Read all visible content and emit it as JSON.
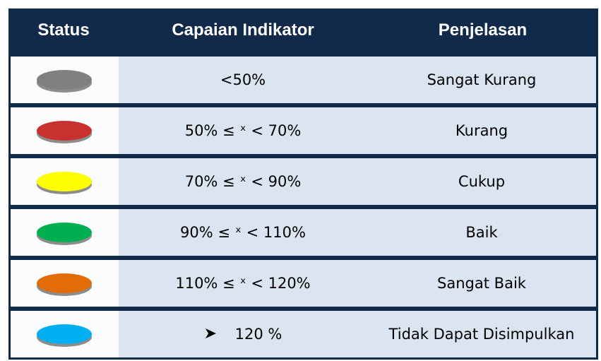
{
  "table": {
    "header": [
      "Status",
      "Capaian Indikator",
      "Penjelasan"
    ],
    "rows": [
      {
        "color": "#808080",
        "range": "<50%",
        "description": "Sangat Kurang"
      },
      {
        "color": "#c8312e",
        "range": "50% ≤ ˣ < 70%",
        "description": "Kurang"
      },
      {
        "color": "#ffff00",
        "range": "70% ≤ ˣ < 90%",
        "description": "Cukup"
      },
      {
        "color": "#00b050",
        "range": "90% ≤ ˣ < 110%",
        "description": "Baik"
      },
      {
        "color": "#e36c0a",
        "range": "110% ≤ ˣ < 120%",
        "description": "Sangat Baik"
      },
      {
        "color": "#00b0f0",
        "range": "120 %",
        "description": "Tidak Dapat Disimpulkan"
      }
    ]
  }
}
